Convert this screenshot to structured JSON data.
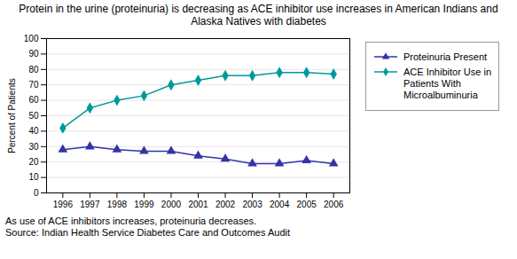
{
  "chart_data": {
    "type": "line",
    "title": "Protein in the urine (proteinuria) is decreasing as ACE inhibitor use increases in American Indians and Alaska Natives with diabetes",
    "y_label": "Percent of Patients",
    "x": [
      1996,
      1997,
      1998,
      1999,
      2000,
      2001,
      2002,
      2003,
      2004,
      2005,
      2006
    ],
    "series": [
      {
        "name": "Proteinuria Present",
        "color": "#3333aa",
        "marker": "triangle",
        "values": [
          28,
          30,
          28,
          27,
          27,
          24,
          22,
          19,
          19,
          21,
          19
        ]
      },
      {
        "name": "ACE Inhibitor Use in\nPatients With\nMicroalbuminuria",
        "color": "#009999",
        "marker": "diamond",
        "values": [
          42,
          55,
          60,
          63,
          70,
          73,
          76,
          76,
          78,
          78,
          77
        ]
      }
    ],
    "xlim": [
      1995.4,
      2006.6
    ],
    "xticks": [
      1996,
      1997,
      1998,
      1999,
      2000,
      2001,
      2002,
      2003,
      2004,
      2005,
      2006
    ],
    "ylim": [
      0,
      100
    ],
    "yticks": [
      0,
      10,
      20,
      30,
      40,
      50,
      60,
      70,
      80,
      90,
      100
    ],
    "grid": true,
    "legend": "right",
    "annotations": [
      "As use of ACE inhibitors increases, proteinuria decreases.",
      "Source: Indian Health Service Diabetes Care and Outcomes Audit"
    ]
  }
}
